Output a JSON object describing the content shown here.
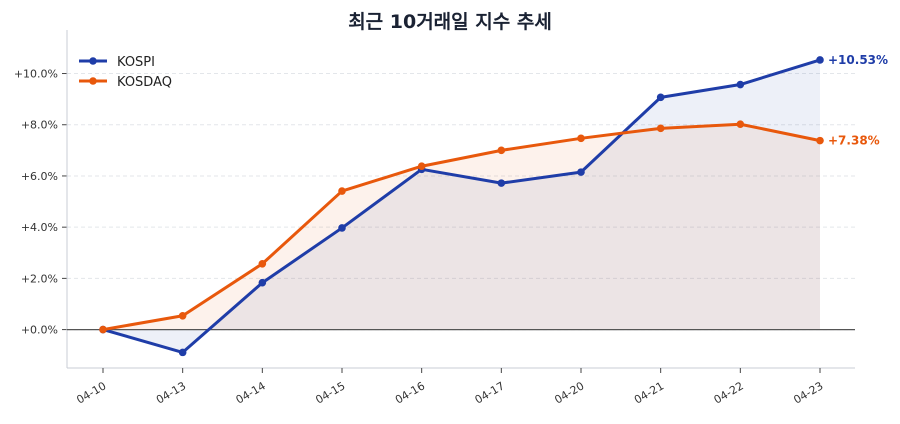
{
  "chart_data": {
    "type": "line",
    "title": "최근 10거래일 지수 추세",
    "xlabel": "",
    "ylabel": "",
    "categories": [
      "04-10",
      "04-13",
      "04-14",
      "04-15",
      "04-16",
      "04-17",
      "04-20",
      "04-21",
      "04-22",
      "04-23"
    ],
    "ylim": [
      -1.5,
      11.7
    ],
    "yticks": [
      0,
      2,
      4,
      6,
      8,
      10
    ],
    "ytick_labels": [
      "+0.0%",
      "+2.0%",
      "+4.0%",
      "+6.0%",
      "+8.0%",
      "+10.0%"
    ],
    "grid": true,
    "legend": "top-left",
    "series": [
      {
        "name": "KOSPI",
        "color": "#1f3da8",
        "values": [
          0,
          -0.89,
          1.83,
          3.97,
          6.26,
          5.72,
          6.15,
          9.07,
          9.57,
          10.53
        ],
        "end_label": "+10.53%"
      },
      {
        "name": "KOSDAQ",
        "color": "#e8580c",
        "values": [
          0,
          0.54,
          2.57,
          5.41,
          6.38,
          7.0,
          7.47,
          7.86,
          8.02,
          7.38
        ],
        "end_label": "+7.38%"
      }
    ]
  }
}
